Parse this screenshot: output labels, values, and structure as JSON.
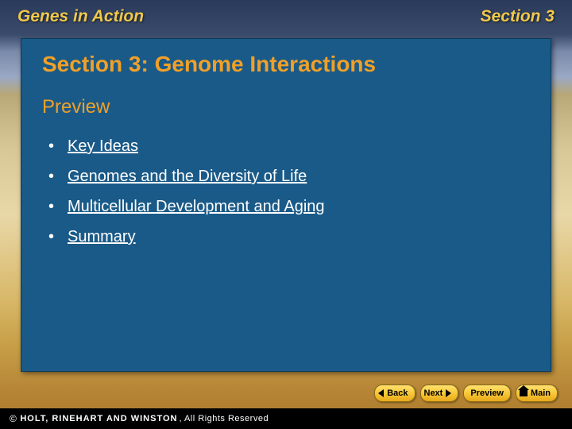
{
  "header": {
    "left": "Genes in Action",
    "right": "Section 3"
  },
  "panel": {
    "title": "Section 3: Genome Interactions",
    "subtitle": "Preview",
    "links": [
      "Key Ideas",
      "Genomes and the Diversity of Life",
      "Multicellular Development and Aging",
      "Summary"
    ]
  },
  "nav": {
    "back": "Back",
    "next": "Next",
    "preview": "Preview",
    "main": "Main"
  },
  "footer": {
    "brand": "HOLT, RINEHART AND WINSTON",
    "rest": ", All Rights Reserved"
  },
  "colors": {
    "accent_yellow": "#f0c84a",
    "title_orange": "#f0a028",
    "panel_blue": "#1a5a88",
    "button_gold_top": "#ffe070",
    "button_gold_bottom": "#e8a818"
  }
}
